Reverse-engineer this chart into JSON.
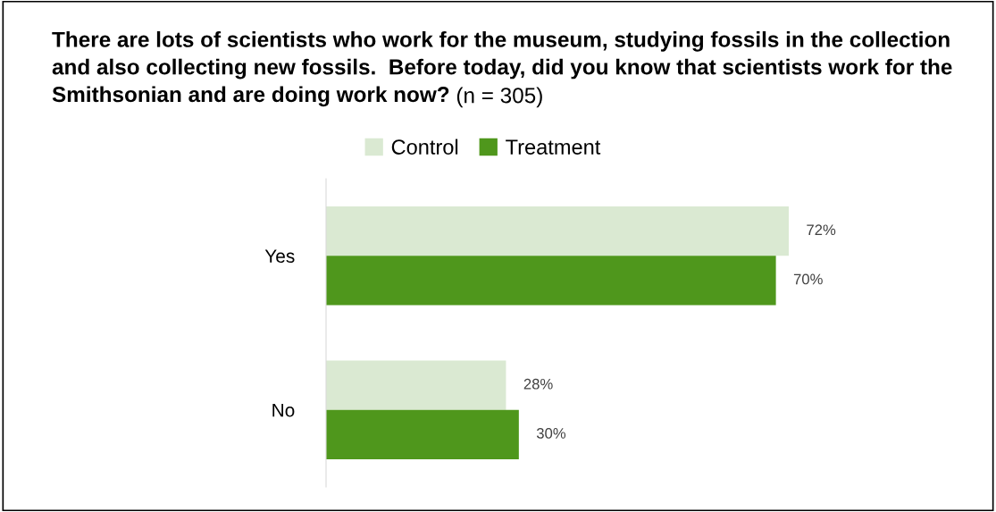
{
  "chart_data": {
    "type": "bar",
    "orientation": "horizontal",
    "title": "There are lots of scientists who work for the museum, studying fossils in the collection and also collecting new fossils.  Before today, did you know that scientists work for the Smithsonian and are doing work now?",
    "subtitle": "(n = 305)",
    "categories": [
      "Yes",
      "No"
    ],
    "series": [
      {
        "name": "Control",
        "color": "#dae9d2",
        "values": [
          72,
          28
        ],
        "value_labels": [
          "72%",
          "28%"
        ]
      },
      {
        "name": "Treatment",
        "color": "#4f971c",
        "values": [
          70,
          30
        ],
        "value_labels": [
          "70%",
          "30%"
        ]
      }
    ],
    "tick_labels": "y",
    "grid": false,
    "legend": "top"
  }
}
